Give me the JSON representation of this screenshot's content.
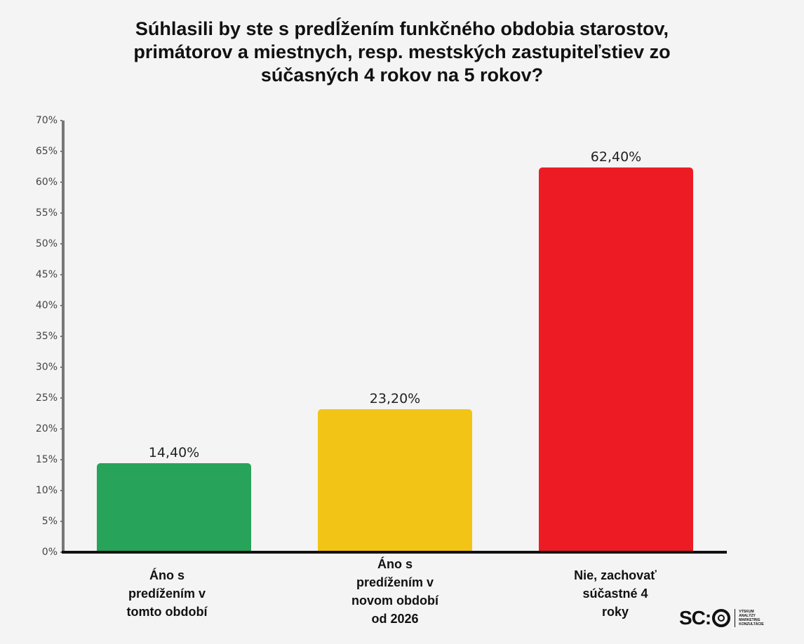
{
  "title_lines": [
    "Súhlasili by ste s predĺžením funkčného obdobia starostov,",
    "primátorov a miestnych, resp. mestských zastupiteľstiev zo",
    "súčasných 4 rokov na 5 rokov?"
  ],
  "chart_data": {
    "type": "bar",
    "title": "Súhlasili by ste s predĺžením funkčného obdobia starostov, primátorov a miestnych, resp. mestských zastupiteľstiev zo súčasných 4 rokov na 5 rokov?",
    "categories": [
      "Áno s predížením v tomto období",
      "Áno s predížením v novom období od 2026",
      "Nie, zachovať súčastné 4 roky"
    ],
    "values": [
      14.4,
      23.2,
      62.4
    ],
    "value_labels": [
      "14,40%",
      "23,20%",
      "62,40%"
    ],
    "colors": [
      "#27a35a",
      "#f2c416",
      "#ed1c24"
    ],
    "xlabel": "",
    "ylabel": "",
    "ylim": [
      0,
      70
    ],
    "yticks": [
      "0%",
      "5%",
      "10%",
      "15%",
      "20%",
      "25%",
      "30%",
      "35%",
      "40%",
      "45%",
      "50%",
      "55%",
      "60%",
      "65%",
      "70%"
    ],
    "grid": false,
    "legend": "none"
  },
  "category_label_lines": [
    [
      "Áno s",
      "predížením v",
      "tomto období"
    ],
    [
      "Áno s",
      "predížením v",
      "novom období",
      "od 2026"
    ],
    [
      "Nie, zachovať",
      "súčastné 4",
      "roky"
    ]
  ],
  "logo": {
    "mark": "SC:",
    "lines": [
      "VÝSKUM",
      "ANALÝZY",
      "MARKETING",
      "KONZULTÁCIE"
    ]
  }
}
